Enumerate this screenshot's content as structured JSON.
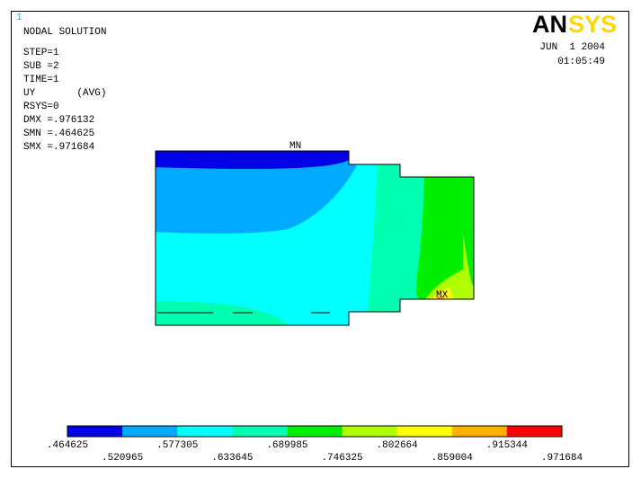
{
  "header": {
    "window_number": "1",
    "title": "NODAL SOLUTION",
    "info": [
      "STEP=1",
      "SUB =2",
      "TIME=1",
      "UY       (AVG)",
      "RSYS=0",
      "DMX =.976132",
      "SMN =.464625",
      "SMX =.971684"
    ],
    "logo_left": "AN",
    "logo_right": "SYS",
    "date": "JUN  1 2004",
    "time": "01:05:49"
  },
  "plot": {
    "min_label": "MN",
    "max_label": "MX"
  },
  "legend": {
    "colors": [
      "#0000e6",
      "#00aaff",
      "#00ffff",
      "#00ffb0",
      "#00ee00",
      "#b0ff00",
      "#ffff00",
      "#ffb000",
      "#ff0000"
    ],
    "labels": [
      ".464625",
      ".520965",
      ".577305",
      ".633645",
      ".689985",
      ".746325",
      ".802664",
      ".859004",
      ".915344",
      ".971684"
    ]
  }
}
